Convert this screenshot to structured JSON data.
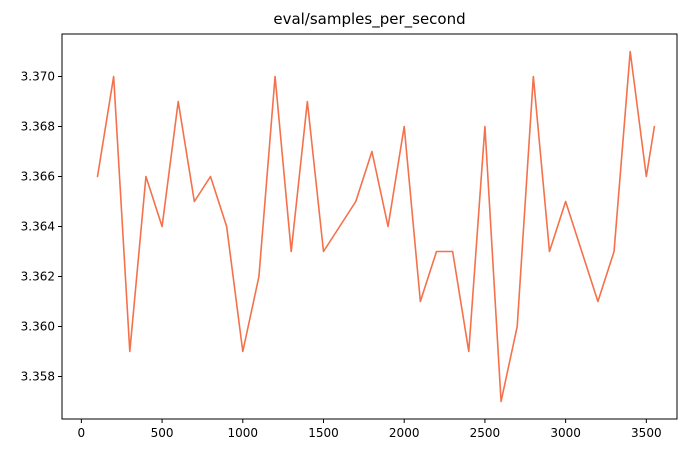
{
  "chart_data": {
    "type": "line",
    "title": "eval/samples_per_second",
    "xlabel": "",
    "ylabel": "",
    "xlim": [
      -120,
      3690
    ],
    "ylim": [
      3.3563,
      3.3717
    ],
    "x_ticks": [
      0,
      500,
      1000,
      1500,
      2000,
      2500,
      3000,
      3500
    ],
    "x_tick_labels": [
      "0",
      "500",
      "1000",
      "1500",
      "2000",
      "2500",
      "3000",
      "3500"
    ],
    "y_ticks": [
      3.358,
      3.36,
      3.362,
      3.364,
      3.366,
      3.368,
      3.37
    ],
    "y_tick_labels": [
      "3.358",
      "3.360",
      "3.362",
      "3.364",
      "3.366",
      "3.368",
      "3.370"
    ],
    "grid": false,
    "series": [
      {
        "color": "#f4714b",
        "x": [
          100,
          200,
          300,
          400,
          500,
          600,
          700,
          800,
          900,
          1000,
          1100,
          1200,
          1300,
          1400,
          1500,
          1600,
          1700,
          1800,
          1900,
          2000,
          2100,
          2200,
          2300,
          2400,
          2500,
          2600,
          2700,
          2800,
          2900,
          3000,
          3100,
          3200,
          3300,
          3400,
          3500,
          3550
        ],
        "y": [
          3.366,
          3.37,
          3.359,
          3.366,
          3.364,
          3.369,
          3.365,
          3.366,
          3.364,
          3.359,
          3.362,
          3.37,
          3.363,
          3.369,
          3.363,
          3.364,
          3.365,
          3.367,
          3.364,
          3.368,
          3.361,
          3.363,
          3.363,
          3.359,
          3.368,
          3.357,
          3.36,
          3.37,
          3.363,
          3.365,
          3.363,
          3.361,
          3.363,
          3.371,
          3.366,
          3.368
        ]
      }
    ]
  }
}
